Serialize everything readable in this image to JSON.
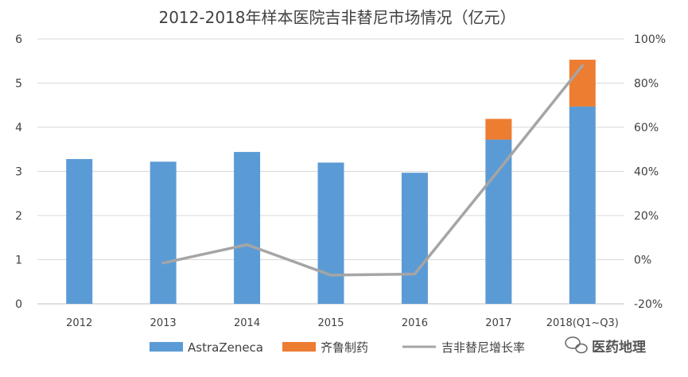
{
  "chart_data": {
    "type": "bar",
    "title": "2012-2018年样本医院吉非替尼市场情况（亿元）",
    "categories": [
      "2012",
      "2013",
      "2014",
      "2015",
      "2016",
      "2017",
      "2018(Q1~Q3)"
    ],
    "stacked": true,
    "series": [
      {
        "name": "AstraZeneca",
        "type": "bar",
        "axis": "left",
        "color": "#5B9BD5",
        "values": [
          3.28,
          3.22,
          3.44,
          3.2,
          2.97,
          3.72,
          4.47
        ]
      },
      {
        "name": "齐鲁制药",
        "type": "bar",
        "axis": "left",
        "color": "#ED7D31",
        "values": [
          0,
          0,
          0,
          0,
          0,
          0.47,
          1.06
        ]
      },
      {
        "name": "吉非替尼增长率",
        "type": "line",
        "axis": "right",
        "color": "#A5A5A5",
        "values": [
          null,
          -1.5,
          6.8,
          -7.0,
          -6.5,
          40.5,
          88.0
        ]
      }
    ],
    "y_left": {
      "ticks": [
        "0",
        "1",
        "2",
        "3",
        "4",
        "5",
        "6"
      ],
      "range": [
        0,
        6
      ]
    },
    "y_right": {
      "ticks": [
        "-20%",
        "0%",
        "20%",
        "40%",
        "60%",
        "80%",
        "100%"
      ],
      "range": [
        -20,
        100
      ]
    },
    "grid": true,
    "legend_position": "bottom"
  },
  "watermark": {
    "text": "医药地理",
    "icon": "wechat-icon"
  }
}
